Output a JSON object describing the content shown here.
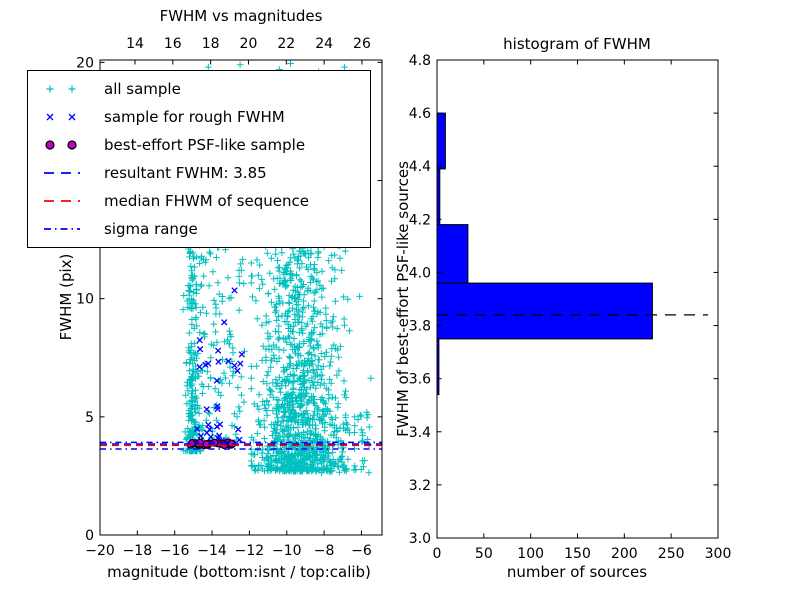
{
  "figure": {
    "background": "#ffffff"
  },
  "left_plot": {
    "title": "FWHM vs magnitudes",
    "xlabel": "magnitude (bottom:isnt / top:calib)",
    "ylabel": "FWHM (pix)",
    "xlim_bottom": [
      -20,
      -4.9
    ],
    "xlim_top": [
      12.15,
      27.06
    ],
    "ylim": [
      0,
      20.1
    ],
    "bottom_ticks": {
      "values": [
        -20,
        -18,
        -16,
        -14,
        -12,
        -10,
        -8,
        -6
      ],
      "labels": [
        "−20",
        "−18",
        "−16",
        "−14",
        "−12",
        "−10",
        "−8",
        "−6"
      ]
    },
    "top_ticks": {
      "values": [
        14,
        16,
        18,
        20,
        22,
        24,
        26
      ],
      "labels": [
        "14",
        "16",
        "18",
        "20",
        "22",
        "24",
        "26"
      ]
    },
    "y_ticks": {
      "values": [
        0,
        5,
        10,
        20
      ],
      "labels": [
        "0",
        "5",
        "10",
        "20"
      ]
    },
    "legend": {
      "items": [
        {
          "label": "all sample",
          "marker": "plus",
          "color": "#00bfbf"
        },
        {
          "label": "sample for rough FWHM",
          "marker": "x",
          "color": "#0000ff"
        },
        {
          "label": "best-effort PSF-like sample",
          "marker": "circle",
          "color": "#bf00bf",
          "edge": "#000000"
        },
        {
          "label": "resultant FWHM: 3.85",
          "marker": "dashed",
          "color": "#0000ff"
        },
        {
          "label": "median FHWM of sequence",
          "marker": "dashed",
          "color": "#ff0000"
        },
        {
          "label": "sigma range",
          "marker": "dashdot",
          "color": "#0000ff"
        }
      ]
    }
  },
  "right_plot": {
    "title": "histogram of FWHM",
    "xlabel": "number of sources",
    "ylabel": "FWHM of best-effort PSF-like sources",
    "xlim": [
      0,
      300
    ],
    "ylim": [
      3.0,
      4.8
    ],
    "x_ticks": {
      "values": [
        0,
        50,
        100,
        150,
        200,
        250,
        300
      ],
      "labels": [
        "0",
        "50",
        "100",
        "150",
        "200",
        "250",
        "300"
      ]
    },
    "y_ticks": {
      "values": [
        3.0,
        3.2,
        3.4,
        3.6,
        3.8,
        4.0,
        4.2,
        4.4,
        4.6,
        4.8
      ],
      "labels": [
        "3.0",
        "3.2",
        "3.4",
        "3.6",
        "3.8",
        "4.0",
        "4.2",
        "4.4",
        "4.6",
        "4.8"
      ]
    }
  },
  "chart_data": [
    {
      "type": "scatter",
      "title": "FWHM vs magnitudes",
      "xlabel": "magnitude (bottom:isnt / top:calib)",
      "ylabel": "FWHM (pix)",
      "x_range_isnt": [
        -20,
        -4.9
      ],
      "x_range_calib": [
        12.15,
        27.06
      ],
      "y_range": [
        0,
        20.1
      ],
      "seed": 42,
      "series": [
        {
          "name": "all sample",
          "marker": "plus",
          "color": "#00bfbf",
          "clusters": [
            {
              "n": 240,
              "x": {
                "dist": "normal",
                "mean": -15.0,
                "sd": 0.2,
                "clip": [
                  -15.55,
                  -14.45
                ]
              },
              "y": {
                "dist": "power",
                "min": 3.55,
                "max": 12.4,
                "pow": 2.2
              }
            },
            {
              "n": 110,
              "x": {
                "dist": "uniform",
                "min": -14.6,
                "max": -12.25
              },
              "y": {
                "dist": "power",
                "min": 3.9,
                "max": 12.2,
                "pow": 1.3
              }
            },
            {
              "n": 1150,
              "x": {
                "dist": "normal",
                "mean": -9.4,
                "sd": 1.15,
                "clip": [
                  -11.9,
                  -5.4
                ]
              },
              "y": {
                "dist": "power",
                "min": 2.7,
                "max": 12.4,
                "pow": 1.9
              }
            },
            {
              "n": 70,
              "x": {
                "dist": "uniform",
                "min": -8.6,
                "max": -5.5
              },
              "y": {
                "dist": "power",
                "min": 2.6,
                "max": 5.2,
                "pow": 1.0
              }
            }
          ],
          "extra_points": [
            [
              -14.2,
              19.8
            ],
            [
              -12.5,
              19.9
            ],
            [
              -10.4,
              19.7
            ],
            [
              -9.8,
              19.95
            ],
            [
              -8.3,
              19.6
            ],
            [
              -6.9,
              19.8
            ],
            [
              -5.8,
              13.2
            ]
          ]
        },
        {
          "name": "sample for rough FWHM",
          "marker": "x",
          "color": "#0000ff",
          "clusters": [
            {
              "n": 16,
              "x": {
                "dist": "uniform",
                "min": -14.7,
                "max": -12.35
              },
              "y": {
                "dist": "power",
                "min": 5.3,
                "max": 8.3,
                "pow": 1.0
              }
            },
            {
              "n": 15,
              "x": {
                "dist": "uniform",
                "min": -14.9,
                "max": -12.5
              },
              "y": {
                "dist": "power",
                "min": 3.95,
                "max": 4.7,
                "pow": 1.0
              }
            }
          ],
          "extra_points": [
            [
              -12.8,
              10.35
            ],
            [
              -13.35,
              9.0
            ]
          ]
        },
        {
          "name": "best-effort PSF-like sample",
          "marker": "circle",
          "color": "#bf00bf",
          "edge": "#000000",
          "clusters": [
            {
              "n": 24,
              "x": {
                "dist": "uniform",
                "min": -15.2,
                "max": -12.65
              },
              "y": {
                "dist": "normal",
                "mean": 3.84,
                "sd": 0.04,
                "clip": [
                  3.74,
                  3.94
                ]
              }
            }
          ],
          "extra_points": []
        }
      ],
      "ref_lines": [
        {
          "name": "resultant FWHM",
          "y": 3.85,
          "style": "dashed",
          "color": "#0000ff"
        },
        {
          "name": "median FHWM of sequence",
          "y": 3.79,
          "style": "dashed",
          "color": "#ff0000"
        },
        {
          "name": "sigma range upper",
          "y": 3.92,
          "style": "dashdot",
          "color": "#0000ff"
        },
        {
          "name": "sigma range lower",
          "y": 3.64,
          "style": "dashdot",
          "color": "#0000ff"
        }
      ]
    },
    {
      "type": "bar",
      "orientation": "horizontal",
      "title": "histogram of FWHM",
      "xlabel": "number of sources",
      "ylabel": "FWHM of best-effort PSF-like sources",
      "xlim": [
        0,
        300
      ],
      "ylim": [
        3.0,
        4.8
      ],
      "bin_edges": [
        3.54,
        3.75,
        3.96,
        4.18,
        4.39,
        4.6
      ],
      "counts": [
        2,
        230,
        33,
        3,
        9
      ],
      "bar_color": "#0000ff",
      "bar_edge": "#000000",
      "median_line": {
        "y": 3.84,
        "style": "dashed",
        "color": "#000000"
      }
    }
  ]
}
